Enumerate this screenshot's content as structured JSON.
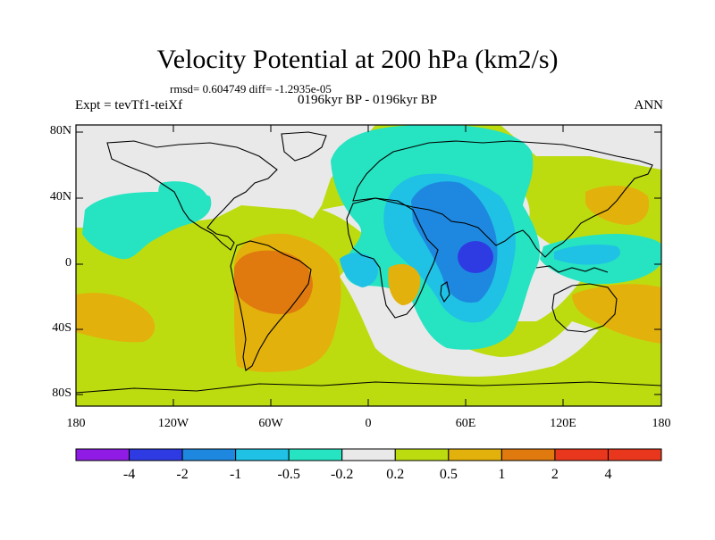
{
  "title": "Velocity Potential at 200 hPa (km2/s)",
  "stats": "rmsd= 0.604749 diff= -1.2935e-05",
  "left_label": "Expt = tevTf1-teiXf",
  "center_label": "0196kyr BP - 0196kyr BP",
  "right_label": "ANN",
  "y_ticks": [
    "80N",
    "40N",
    "0",
    "40S",
    "80S"
  ],
  "x_ticks": [
    "180",
    "120W",
    "60W",
    "0",
    "60E",
    "120E",
    "180"
  ],
  "colorbar": {
    "labels": [
      "-4",
      "-2",
      "-1",
      "-0.5",
      "-0.2",
      "0.2",
      "0.5",
      "1",
      "2",
      "4"
    ],
    "colors": [
      "#8f1be5",
      "#2e3be2",
      "#1e88e0",
      "#1fc1e5",
      "#26e3c2",
      "#e9e9e9",
      "#bcdc10",
      "#e3b10c",
      "#e07a0f",
      "#e8371c"
    ]
  }
}
